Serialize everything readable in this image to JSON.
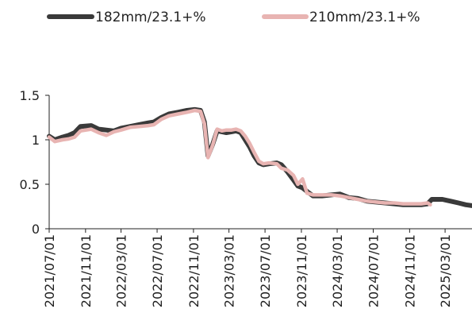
{
  "colors": {
    "series_a": "#3a3a3a",
    "series_b": "#e8b4b2",
    "axis": "#222222"
  },
  "chart_data": {
    "type": "line",
    "title": "",
    "xlabel": "",
    "ylabel": "",
    "ylim": [
      0,
      1.5
    ],
    "xlim": [
      "2021-07-01",
      "2025-05-31"
    ],
    "y_ticks": [
      "0",
      "0.5",
      "1",
      "1.5"
    ],
    "y_tick_values": [
      0,
      0.5,
      1,
      1.5
    ],
    "x_ticks": [
      "2021/07/01",
      "2021/11/01",
      "2022/03/01",
      "2022/07/01",
      "2022/11/01",
      "2023/03/01",
      "2023/07/01",
      "2023/11/01",
      "2024/03/01",
      "2024/07/01",
      "2024/11/01",
      "2025/03/01"
    ],
    "x_tick_dates": [
      "2021-07-01",
      "2021-11-01",
      "2022-03-01",
      "2022-07-01",
      "2022-11-01",
      "2023-03-01",
      "2023-07-01",
      "2023-11-01",
      "2024-03-01",
      "2024-07-01",
      "2024-11-01",
      "2025-03-01"
    ],
    "grid": false,
    "legend_position": "top",
    "series": [
      {
        "name": "182mm/23.1+%",
        "color": "#3a3a3a",
        "points": [
          [
            "2021-07-01",
            1.04
          ],
          [
            "2021-07-20",
            1.0
          ],
          [
            "2021-08-15",
            1.03
          ],
          [
            "2021-09-05",
            1.05
          ],
          [
            "2021-09-25",
            1.08
          ],
          [
            "2021-10-15",
            1.15
          ],
          [
            "2021-11-20",
            1.16
          ],
          [
            "2021-12-15",
            1.12
          ],
          [
            "2022-01-10",
            1.11
          ],
          [
            "2022-02-05",
            1.1
          ],
          [
            "2022-03-01",
            1.13
          ],
          [
            "2022-04-01",
            1.15
          ],
          [
            "2022-05-01",
            1.17
          ],
          [
            "2022-06-01",
            1.19
          ],
          [
            "2022-06-20",
            1.2
          ],
          [
            "2022-07-15",
            1.25
          ],
          [
            "2022-08-10",
            1.29
          ],
          [
            "2022-09-10",
            1.31
          ],
          [
            "2022-10-10",
            1.33
          ],
          [
            "2022-11-05",
            1.34
          ],
          [
            "2022-11-25",
            1.33
          ],
          [
            "2022-12-08",
            1.2
          ],
          [
            "2022-12-20",
            0.82
          ],
          [
            "2023-01-05",
            0.95
          ],
          [
            "2023-01-20",
            1.1
          ],
          [
            "2023-02-05",
            1.09
          ],
          [
            "2023-02-20",
            1.08
          ],
          [
            "2023-03-10",
            1.09
          ],
          [
            "2023-03-25",
            1.1
          ],
          [
            "2023-04-10",
            1.08
          ],
          [
            "2023-04-25",
            1.0
          ],
          [
            "2023-05-10",
            0.92
          ],
          [
            "2023-05-25",
            0.82
          ],
          [
            "2023-06-10",
            0.74
          ],
          [
            "2023-06-25",
            0.72
          ],
          [
            "2023-07-15",
            0.73
          ],
          [
            "2023-08-10",
            0.74
          ],
          [
            "2023-08-25",
            0.72
          ],
          [
            "2023-09-15",
            0.64
          ],
          [
            "2023-10-05",
            0.55
          ],
          [
            "2023-10-20",
            0.48
          ],
          [
            "2023-11-05",
            0.46
          ],
          [
            "2023-11-20",
            0.42
          ],
          [
            "2023-12-10",
            0.37
          ],
          [
            "2024-01-10",
            0.37
          ],
          [
            "2024-02-10",
            0.38
          ],
          [
            "2024-03-10",
            0.39
          ],
          [
            "2024-04-10",
            0.35
          ],
          [
            "2024-05-10",
            0.34
          ],
          [
            "2024-06-10",
            0.31
          ],
          [
            "2024-07-10",
            0.3
          ],
          [
            "2024-08-10",
            0.29
          ],
          [
            "2024-09-10",
            0.28
          ],
          [
            "2024-10-10",
            0.27
          ],
          [
            "2024-11-10",
            0.27
          ],
          [
            "2024-12-10",
            0.27
          ],
          [
            "2025-01-01",
            0.28
          ],
          [
            "2025-01-15",
            0.33
          ],
          [
            "2025-02-20",
            0.33
          ],
          [
            "2025-03-20",
            0.31
          ],
          [
            "2025-04-15",
            0.29
          ],
          [
            "2025-05-10",
            0.27
          ],
          [
            "2025-05-31",
            0.26
          ]
        ]
      },
      {
        "name": "210mm/23.1+%",
        "color": "#e8b4b2",
        "points": [
          [
            "2021-07-01",
            1.03
          ],
          [
            "2021-07-20",
            0.98
          ],
          [
            "2021-08-15",
            1.0
          ],
          [
            "2021-09-05",
            1.01
          ],
          [
            "2021-09-25",
            1.03
          ],
          [
            "2021-10-15",
            1.1
          ],
          [
            "2021-11-20",
            1.12
          ],
          [
            "2021-12-15",
            1.08
          ],
          [
            "2022-01-10",
            1.05
          ],
          [
            "2022-02-05",
            1.09
          ],
          [
            "2022-03-01",
            1.11
          ],
          [
            "2022-04-01",
            1.14
          ],
          [
            "2022-05-01",
            1.15
          ],
          [
            "2022-06-01",
            1.16
          ],
          [
            "2022-06-20",
            1.17
          ],
          [
            "2022-07-15",
            1.23
          ],
          [
            "2022-08-10",
            1.27
          ],
          [
            "2022-09-10",
            1.29
          ],
          [
            "2022-10-10",
            1.31
          ],
          [
            "2022-11-05",
            1.33
          ],
          [
            "2022-11-25",
            1.32
          ],
          [
            "2022-12-08",
            1.18
          ],
          [
            "2022-12-20",
            0.8
          ],
          [
            "2023-01-05",
            0.94
          ],
          [
            "2023-01-20",
            1.12
          ],
          [
            "2023-02-05",
            1.1
          ],
          [
            "2023-02-20",
            1.11
          ],
          [
            "2023-03-10",
            1.11
          ],
          [
            "2023-03-25",
            1.12
          ],
          [
            "2023-04-10",
            1.1
          ],
          [
            "2023-04-25",
            1.04
          ],
          [
            "2023-05-10",
            0.96
          ],
          [
            "2023-05-25",
            0.86
          ],
          [
            "2023-06-10",
            0.76
          ],
          [
            "2023-06-25",
            0.73
          ],
          [
            "2023-07-15",
            0.74
          ],
          [
            "2023-08-10",
            0.73
          ],
          [
            "2023-08-25",
            0.68
          ],
          [
            "2023-09-15",
            0.66
          ],
          [
            "2023-10-05",
            0.6
          ],
          [
            "2023-10-20",
            0.5
          ],
          [
            "2023-11-05",
            0.56
          ],
          [
            "2023-11-20",
            0.4
          ],
          [
            "2023-12-10",
            0.38
          ],
          [
            "2024-01-10",
            0.38
          ],
          [
            "2024-02-10",
            0.38
          ],
          [
            "2024-03-10",
            0.37
          ],
          [
            "2024-04-10",
            0.35
          ],
          [
            "2024-05-10",
            0.33
          ],
          [
            "2024-06-10",
            0.31
          ],
          [
            "2024-07-10",
            0.3
          ],
          [
            "2024-08-10",
            0.29
          ],
          [
            "2024-09-10",
            0.29
          ],
          [
            "2024-10-10",
            0.28
          ],
          [
            "2024-11-10",
            0.28
          ],
          [
            "2024-12-10",
            0.28
          ],
          [
            "2025-01-01",
            0.29
          ],
          [
            "2025-01-10",
            0.27
          ]
        ]
      }
    ]
  }
}
